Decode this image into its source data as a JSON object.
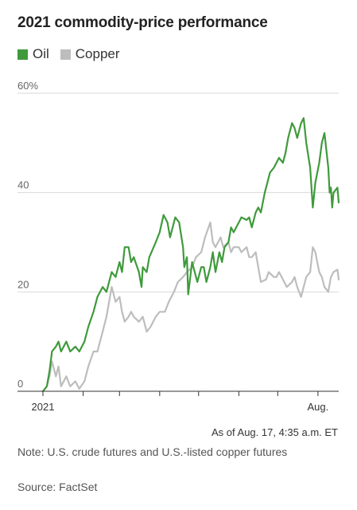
{
  "title": "2021 commodity-price performance",
  "as_of": "As of Aug. 17, 4:35 a.m. ET",
  "note": "Note: U.S. crude futures and U.S.-listed copper futures",
  "source": "Source: FactSet",
  "chart_data": {
    "type": "line",
    "title": "2021 commodity-price performance",
    "ylim": [
      0,
      60
    ],
    "yticks": [
      0,
      20,
      40,
      60
    ],
    "ytick_labels": [
      "0",
      "20",
      "40",
      "60%"
    ],
    "x_labels": [
      {
        "date": "2021-01-01",
        "label": "2021"
      },
      {
        "date": "2021-08-01",
        "label": "Aug."
      }
    ],
    "x_range": [
      "2021-01-01",
      "2021-08-17"
    ],
    "grid": true,
    "legend": "top-left",
    "series": [
      {
        "name": "Oil",
        "color": "#3f9a3c",
        "points": [
          [
            "2021-01-01",
            0
          ],
          [
            "2021-01-04",
            1
          ],
          [
            "2021-01-06",
            4
          ],
          [
            "2021-01-08",
            8
          ],
          [
            "2021-01-11",
            9
          ],
          [
            "2021-01-13",
            10
          ],
          [
            "2021-01-15",
            8
          ],
          [
            "2021-01-19",
            10
          ],
          [
            "2021-01-22",
            8
          ],
          [
            "2021-01-26",
            9
          ],
          [
            "2021-01-29",
            8
          ],
          [
            "2021-02-02",
            10
          ],
          [
            "2021-02-05",
            13
          ],
          [
            "2021-02-09",
            16
          ],
          [
            "2021-02-12",
            19
          ],
          [
            "2021-02-16",
            21
          ],
          [
            "2021-02-19",
            20
          ],
          [
            "2021-02-23",
            24
          ],
          [
            "2021-02-26",
            23
          ],
          [
            "2021-03-01",
            26
          ],
          [
            "2021-03-03",
            24
          ],
          [
            "2021-03-05",
            29
          ],
          [
            "2021-03-08",
            29
          ],
          [
            "2021-03-10",
            26
          ],
          [
            "2021-03-12",
            27
          ],
          [
            "2021-03-16",
            24
          ],
          [
            "2021-03-18",
            21
          ],
          [
            "2021-03-19",
            25
          ],
          [
            "2021-03-22",
            24
          ],
          [
            "2021-03-24",
            27
          ],
          [
            "2021-03-29",
            30
          ],
          [
            "2021-04-01",
            32
          ],
          [
            "2021-04-04",
            35.5
          ],
          [
            "2021-04-07",
            34
          ],
          [
            "2021-04-09",
            31
          ],
          [
            "2021-04-13",
            35
          ],
          [
            "2021-04-16",
            34
          ],
          [
            "2021-04-19",
            29
          ],
          [
            "2021-04-20",
            25
          ],
          [
            "2021-04-22",
            27
          ],
          [
            "2021-04-23",
            19.5
          ],
          [
            "2021-04-26",
            26
          ],
          [
            "2021-04-28",
            24
          ],
          [
            "2021-04-30",
            22
          ],
          [
            "2021-05-03",
            25
          ],
          [
            "2021-05-05",
            25
          ],
          [
            "2021-05-07",
            22
          ],
          [
            "2021-05-10",
            25
          ],
          [
            "2021-05-12",
            28
          ],
          [
            "2021-05-14",
            24
          ],
          [
            "2021-05-17",
            28
          ],
          [
            "2021-05-19",
            26
          ],
          [
            "2021-05-21",
            29
          ],
          [
            "2021-05-24",
            30
          ],
          [
            "2021-05-26",
            33
          ],
          [
            "2021-05-28",
            32
          ],
          [
            "2021-06-01",
            34
          ],
          [
            "2021-06-03",
            35
          ],
          [
            "2021-06-07",
            34.5
          ],
          [
            "2021-06-09",
            35
          ],
          [
            "2021-06-11",
            33
          ],
          [
            "2021-06-14",
            36
          ],
          [
            "2021-06-16",
            37
          ],
          [
            "2021-06-18",
            36
          ],
          [
            "2021-06-21",
            40
          ],
          [
            "2021-06-23",
            42
          ],
          [
            "2021-06-25",
            44
          ],
          [
            "2021-06-28",
            45
          ],
          [
            "2021-06-30",
            46
          ],
          [
            "2021-07-02",
            47
          ],
          [
            "2021-07-05",
            46
          ],
          [
            "2021-07-07",
            48
          ],
          [
            "2021-07-09",
            51
          ],
          [
            "2021-07-12",
            54
          ],
          [
            "2021-07-14",
            53
          ],
          [
            "2021-07-16",
            51
          ],
          [
            "2021-07-19",
            54
          ],
          [
            "2021-07-21",
            55
          ],
          [
            "2021-07-23",
            50
          ],
          [
            "2021-07-26",
            45
          ],
          [
            "2021-07-28",
            37
          ],
          [
            "2021-07-30",
            42
          ],
          [
            "2021-08-02",
            46
          ],
          [
            "2021-08-04",
            50
          ],
          [
            "2021-08-06",
            52
          ],
          [
            "2021-08-09",
            45
          ],
          [
            "2021-08-10",
            40
          ],
          [
            "2021-08-11",
            41
          ],
          [
            "2021-08-12",
            37
          ],
          [
            "2021-08-13",
            40
          ],
          [
            "2021-08-16",
            41
          ],
          [
            "2021-08-17",
            38
          ]
        ]
      },
      {
        "name": "Copper",
        "color": "#bdbdbd",
        "points": [
          [
            "2021-01-01",
            0
          ],
          [
            "2021-01-04",
            1
          ],
          [
            "2021-01-06",
            3
          ],
          [
            "2021-01-08",
            6
          ],
          [
            "2021-01-11",
            3
          ],
          [
            "2021-01-13",
            5
          ],
          [
            "2021-01-15",
            1
          ],
          [
            "2021-01-19",
            3
          ],
          [
            "2021-01-22",
            1
          ],
          [
            "2021-01-26",
            2
          ],
          [
            "2021-01-29",
            0.5
          ],
          [
            "2021-02-02",
            2
          ],
          [
            "2021-02-05",
            5
          ],
          [
            "2021-02-09",
            8
          ],
          [
            "2021-02-12",
            8
          ],
          [
            "2021-02-16",
            12
          ],
          [
            "2021-02-19",
            15
          ],
          [
            "2021-02-23",
            21
          ],
          [
            "2021-02-26",
            18
          ],
          [
            "2021-03-01",
            19
          ],
          [
            "2021-03-03",
            16
          ],
          [
            "2021-03-05",
            14
          ],
          [
            "2021-03-08",
            15
          ],
          [
            "2021-03-10",
            16
          ],
          [
            "2021-03-12",
            15
          ],
          [
            "2021-03-16",
            14
          ],
          [
            "2021-03-19",
            15
          ],
          [
            "2021-03-22",
            12
          ],
          [
            "2021-03-25",
            13
          ],
          [
            "2021-03-29",
            15
          ],
          [
            "2021-04-01",
            16
          ],
          [
            "2021-04-05",
            16
          ],
          [
            "2021-04-08",
            18
          ],
          [
            "2021-04-12",
            20
          ],
          [
            "2021-04-15",
            22
          ],
          [
            "2021-04-19",
            23
          ],
          [
            "2021-04-22",
            24
          ],
          [
            "2021-04-26",
            25
          ],
          [
            "2021-04-29",
            27
          ],
          [
            "2021-05-03",
            28
          ],
          [
            "2021-05-06",
            31
          ],
          [
            "2021-05-10",
            34
          ],
          [
            "2021-05-12",
            30
          ],
          [
            "2021-05-14",
            29
          ],
          [
            "2021-05-18",
            31
          ],
          [
            "2021-05-20",
            29
          ],
          [
            "2021-05-24",
            30
          ],
          [
            "2021-05-26",
            28
          ],
          [
            "2021-05-28",
            29
          ],
          [
            "2021-06-01",
            29
          ],
          [
            "2021-06-03",
            28
          ],
          [
            "2021-06-07",
            29
          ],
          [
            "2021-06-09",
            27
          ],
          [
            "2021-06-11",
            27
          ],
          [
            "2021-06-14",
            28
          ],
          [
            "2021-06-16",
            25
          ],
          [
            "2021-06-18",
            22
          ],
          [
            "2021-06-22",
            22.5
          ],
          [
            "2021-06-24",
            24
          ],
          [
            "2021-06-28",
            23
          ],
          [
            "2021-06-30",
            23
          ],
          [
            "2021-07-02",
            24
          ],
          [
            "2021-07-06",
            22
          ],
          [
            "2021-07-08",
            21
          ],
          [
            "2021-07-12",
            22
          ],
          [
            "2021-07-14",
            23
          ],
          [
            "2021-07-16",
            21
          ],
          [
            "2021-07-19",
            19
          ],
          [
            "2021-07-21",
            21
          ],
          [
            "2021-07-23",
            23
          ],
          [
            "2021-07-26",
            24
          ],
          [
            "2021-07-28",
            29
          ],
          [
            "2021-07-30",
            28
          ],
          [
            "2021-08-02",
            24
          ],
          [
            "2021-08-04",
            23
          ],
          [
            "2021-08-06",
            21
          ],
          [
            "2021-08-09",
            20
          ],
          [
            "2021-08-11",
            23
          ],
          [
            "2021-08-13",
            24
          ],
          [
            "2021-08-16",
            24.5
          ],
          [
            "2021-08-17",
            22.5
          ]
        ]
      }
    ]
  }
}
